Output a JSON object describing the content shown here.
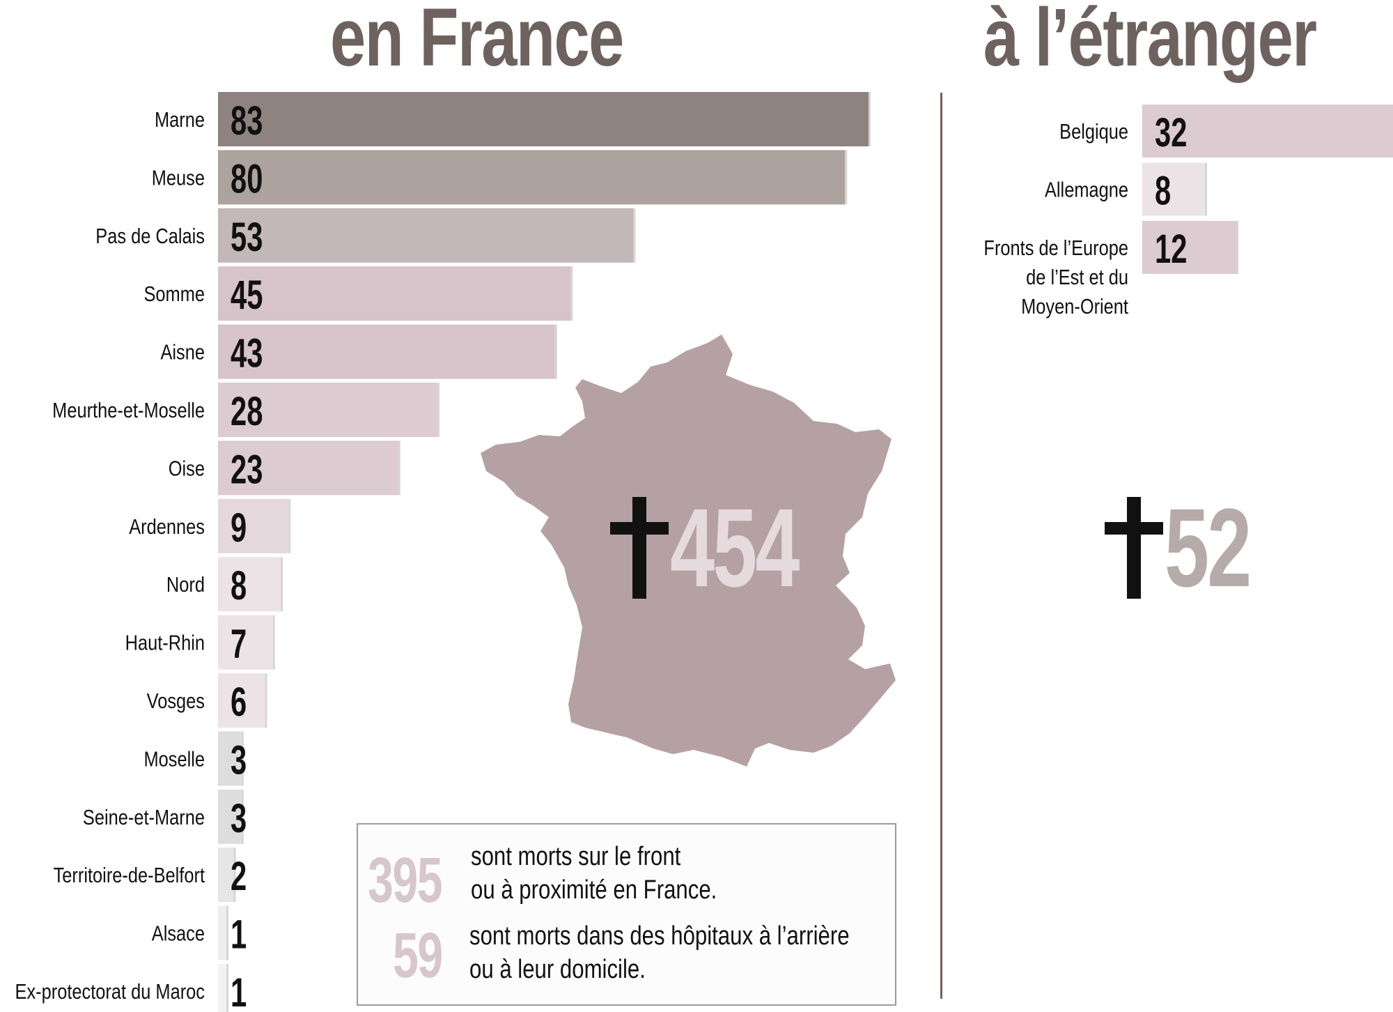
{
  "headings": {
    "france": "en France",
    "abroad": "à l’étranger"
  },
  "chart_data": [
    {
      "type": "bar",
      "title": "en France",
      "orientation": "horizontal",
      "categories": [
        "Marne",
        "Meuse",
        "Pas de Calais",
        "Somme",
        "Aisne",
        "Meurthe-et-Moselle",
        "Oise",
        "Ardennes",
        "Nord",
        "Haut-Rhin",
        "Vosges",
        "Moselle",
        "Seine-et-Marne",
        "Territoire-de-Belfort",
        "Alsace",
        "Ex-protectorat du Maroc"
      ],
      "values": [
        83,
        80,
        53,
        45,
        43,
        28,
        23,
        9,
        8,
        7,
        6,
        3,
        3,
        2,
        1,
        1
      ],
      "xlim": [
        0,
        83
      ],
      "grid": false,
      "colors": [
        "#8e8380",
        "#aca39f",
        "#c2b7b9",
        "#d7c4ca",
        "#d7c4ca",
        "#dccbd0",
        "#dccbd0",
        "#e5d8dc",
        "#ece3e6",
        "#ece3e6",
        "#ece3e6",
        "#dddddd",
        "#dddddd",
        "#e6e6e6",
        "#eeeeee",
        "#f2f2f2"
      ]
    },
    {
      "type": "bar",
      "title": "à l’étranger",
      "orientation": "horizontal",
      "categories": [
        [
          "Belgique"
        ],
        [
          "Allemagne"
        ],
        [
          "Fronts de l’Europe",
          "de l’Est et du",
          "Moyen-Orient"
        ]
      ],
      "values": [
        32,
        8,
        12
      ],
      "xlim": [
        0,
        32
      ],
      "grid": false,
      "colors": [
        "#dccbd0",
        "#ece3e6",
        "#dccbd0"
      ]
    }
  ],
  "totals": {
    "france": {
      "value": "454",
      "color": "#e5dadd"
    },
    "abroad": {
      "value": "52",
      "color": "#b6aaab"
    }
  },
  "map": {
    "color": "#b5a1a4"
  },
  "infobox": {
    "front_count": "395",
    "front_text": [
      "sont morts sur le front",
      "ou à proximité en France."
    ],
    "hospital_count": "59",
    "hospital_text": [
      "sont morts dans des hôpitaux à l’arrière",
      "ou à leur domicile."
    ]
  }
}
